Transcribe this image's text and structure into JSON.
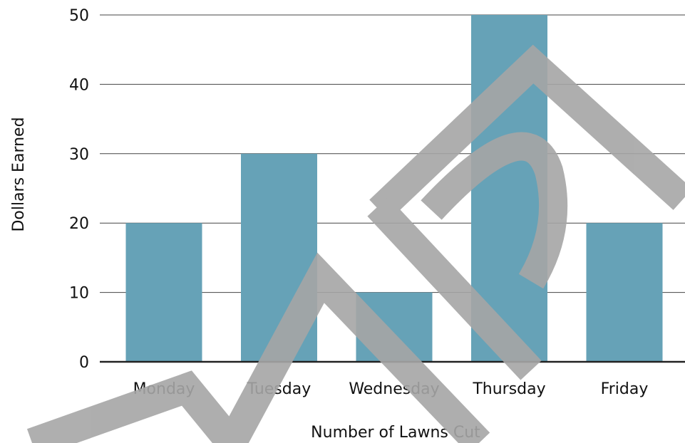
{
  "chart_data": {
    "type": "bar",
    "categories": [
      "Monday",
      "Tuesday",
      "Wednesday",
      "Thursday",
      "Friday"
    ],
    "values": [
      20,
      30,
      10,
      50,
      20
    ],
    "title": "",
    "xlabel": "Number of Lawns Cut",
    "ylabel": "Dollars Earned",
    "ylim": [
      0,
      50
    ],
    "yticks": [
      0,
      10,
      20,
      30,
      40,
      50
    ],
    "grid": true,
    "legend": "none",
    "bar_color": "#66a2b7",
    "watermark_text": "MAP",
    "watermark_color": "#a6a6a6"
  }
}
